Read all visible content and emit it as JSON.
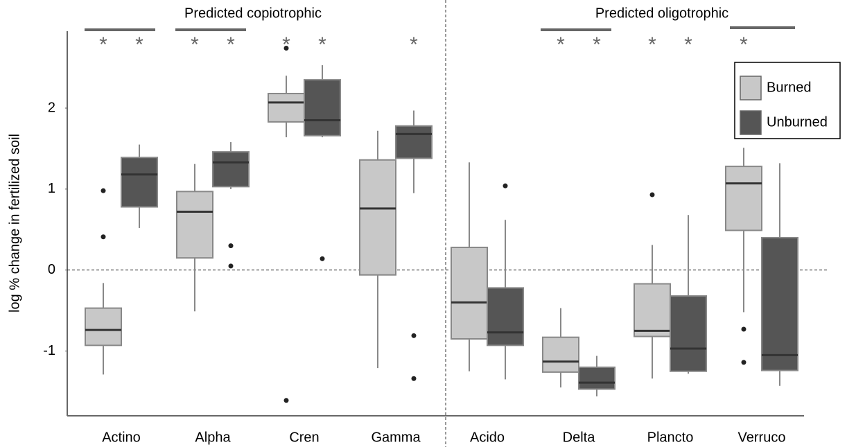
{
  "chart_data": {
    "type": "box",
    "ylabel": "log % change in fertilized soil",
    "annotations": [
      "Predicted copiotrophic",
      "Predicted oligotrophic"
    ],
    "categories": [
      "Actino",
      "Alpha",
      "Cren",
      "Gamma",
      "Acido",
      "Delta",
      "Plancto",
      "Verruco"
    ],
    "ylim": [
      -1.8,
      2.95
    ],
    "yticks": [
      -1,
      0,
      1,
      2
    ],
    "hline": 0,
    "legend": "top-right",
    "series": [
      {
        "name": "Burned",
        "color": "#c8c8c8",
        "significance": [
          "*",
          "*",
          "*",
          null,
          null,
          "*",
          "*",
          "*"
        ],
        "boxes": [
          {
            "low": -1.29,
            "q1": -0.93,
            "median": -0.74,
            "q3": -0.47,
            "high": -0.16,
            "outliers": [
              0.98,
              0.41
            ]
          },
          {
            "low": -0.51,
            "q1": 0.15,
            "median": 0.72,
            "q3": 0.97,
            "high": 1.31,
            "outliers": []
          },
          {
            "low": 1.64,
            "q1": 1.83,
            "median": 2.07,
            "q3": 2.18,
            "high": 2.4,
            "outliers": [
              2.74,
              -1.61
            ]
          },
          {
            "low": -1.21,
            "q1": -0.06,
            "median": 0.76,
            "q3": 1.36,
            "high": 1.72,
            "outliers": []
          },
          {
            "low": -1.25,
            "q1": -0.85,
            "median": -0.4,
            "q3": 0.28,
            "high": 1.33,
            "outliers": []
          },
          {
            "low": -1.45,
            "q1": -1.26,
            "median": -1.13,
            "q3": -0.83,
            "high": -0.47,
            "outliers": []
          },
          {
            "low": -1.34,
            "q1": -0.82,
            "median": -0.75,
            "q3": -0.17,
            "high": 0.31,
            "outliers": [
              0.93
            ]
          },
          {
            "low": -0.52,
            "q1": 0.49,
            "median": 1.07,
            "q3": 1.28,
            "high": 1.51,
            "outliers": [
              -0.73,
              -1.14
            ]
          }
        ]
      },
      {
        "name": "Unburned",
        "color": "#555555",
        "significance": [
          "*",
          "*",
          "*",
          "*",
          null,
          "*",
          "*",
          null
        ],
        "boxes": [
          {
            "low": 0.52,
            "q1": 0.78,
            "median": 1.18,
            "q3": 1.39,
            "high": 1.55,
            "outliers": []
          },
          {
            "low": 1.0,
            "q1": 1.03,
            "median": 1.33,
            "q3": 1.46,
            "high": 1.58,
            "outliers": [
              0.3,
              0.05
            ]
          },
          {
            "low": 1.64,
            "q1": 1.66,
            "median": 1.85,
            "q3": 2.35,
            "high": 2.53,
            "outliers": [
              0.14
            ]
          },
          {
            "low": 0.95,
            "q1": 1.38,
            "median": 1.68,
            "q3": 1.78,
            "high": 1.97,
            "outliers": [
              -0.81,
              -1.34
            ]
          },
          {
            "low": -1.35,
            "q1": -0.93,
            "median": -0.77,
            "q3": -0.22,
            "high": 0.62,
            "outliers": [
              1.04
            ]
          },
          {
            "low": -1.56,
            "q1": -1.47,
            "median": -1.39,
            "q3": -1.2,
            "high": -1.06,
            "outliers": []
          },
          {
            "low": -1.28,
            "q1": -1.25,
            "median": -0.97,
            "q3": -0.32,
            "high": 0.68,
            "outliers": []
          },
          {
            "low": -1.43,
            "q1": -1.24,
            "median": -1.05,
            "q3": 0.4,
            "high": 1.32,
            "outliers": []
          }
        ]
      }
    ]
  }
}
